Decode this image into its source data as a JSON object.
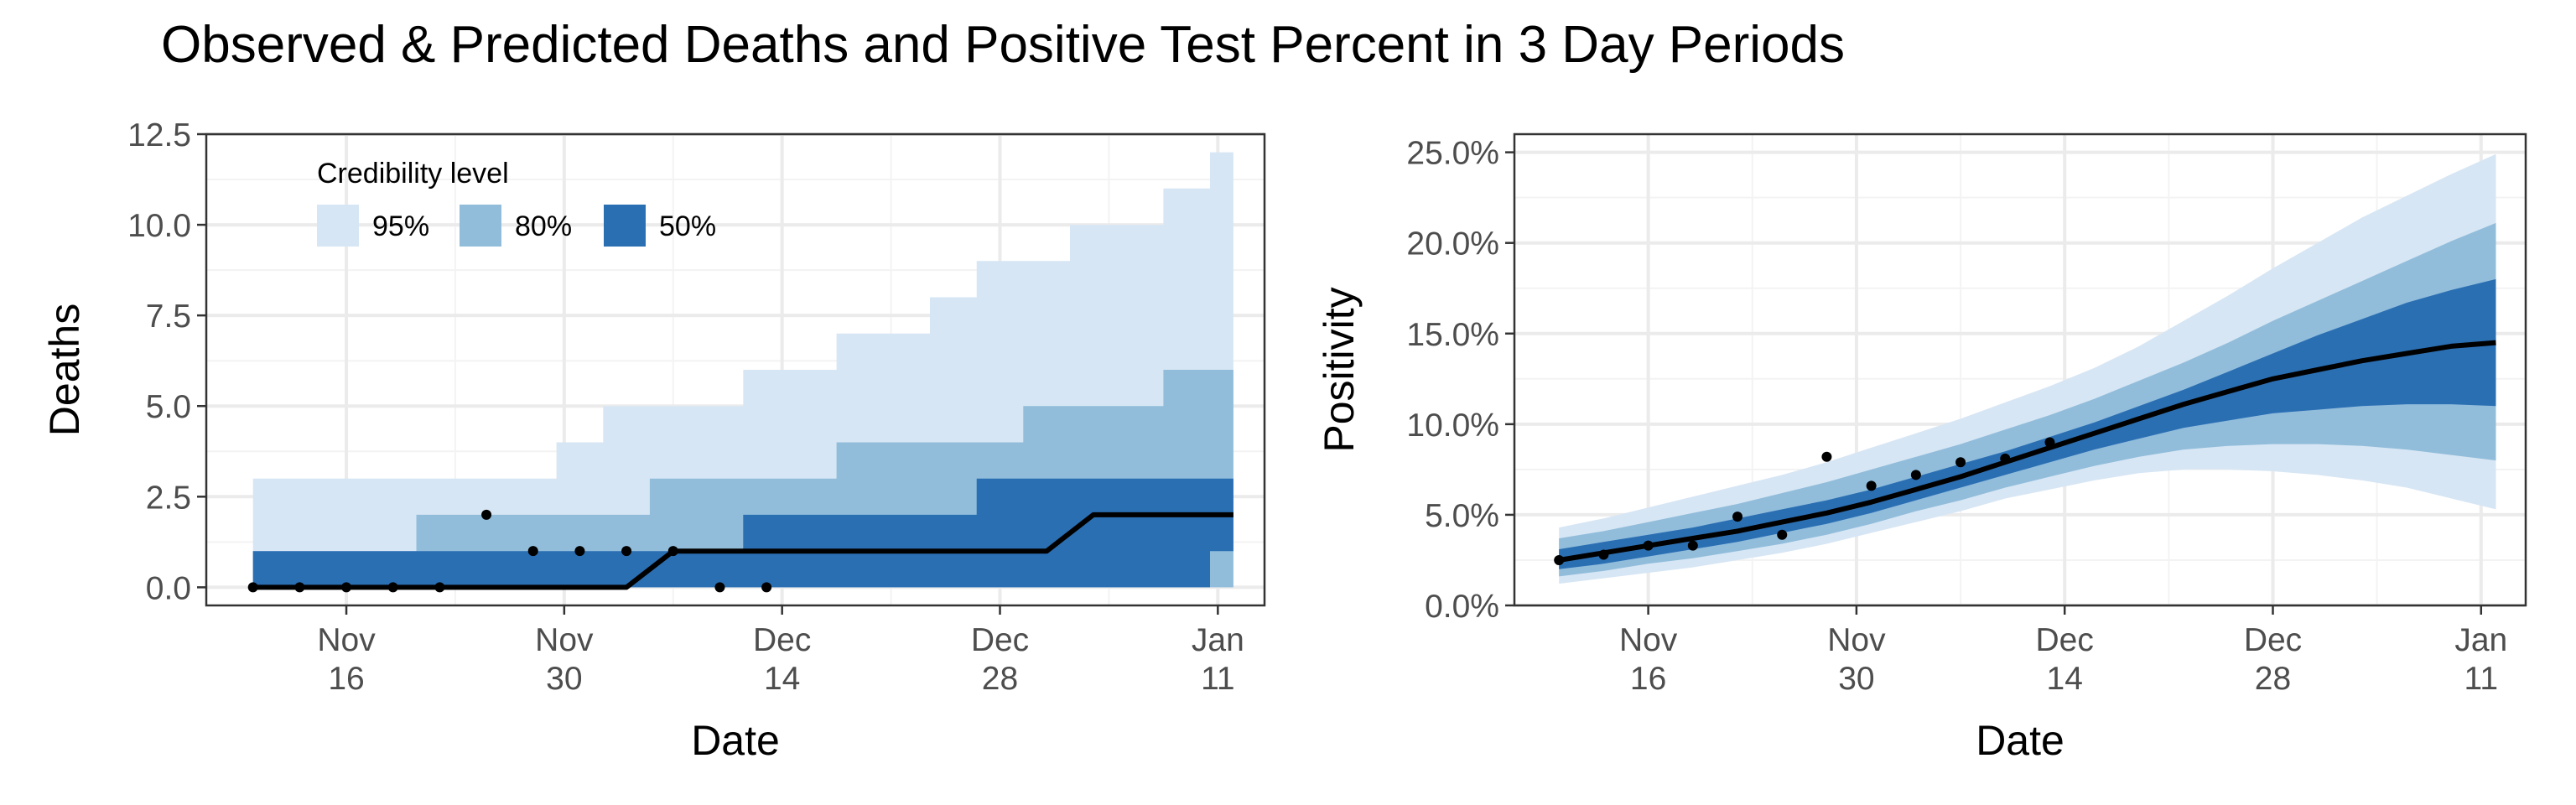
{
  "title": "Observed & Predicted Deaths and Positive Test Percent in 3 Day Periods",
  "colors": {
    "band95": "#d7e6f4",
    "band80": "#91bddb",
    "band50": "#2b6fb3",
    "median": "#000000",
    "observed": "#000000",
    "grid_major": "#ebebeb",
    "grid_minor": "#f3f3f3",
    "panel_border": "#333333"
  },
  "legend": {
    "title": "Credibility level",
    "placement": "top-left",
    "items": [
      {
        "label": "95%",
        "color": "#d7e6f4"
      },
      {
        "label": "80%",
        "color": "#91bddb"
      },
      {
        "label": "50%",
        "color": "#2b6fb3"
      }
    ]
  },
  "chart_data": [
    {
      "type": "area",
      "step": true,
      "xlabel": "Date",
      "ylabel": "Deaths",
      "ylim": [
        -0.5,
        12.5
      ],
      "yticks": [
        0,
        2.5,
        5,
        7.5,
        10,
        12.5
      ],
      "ytick_labels": [
        "0.0",
        "2.5",
        "5.0",
        "7.5",
        "10.0",
        "12.5"
      ],
      "xlim": [
        "2020-11-07",
        "2021-01-14"
      ],
      "xticks": [
        "2020-11-16",
        "2020-11-30",
        "2020-12-14",
        "2020-12-28",
        "2021-01-11"
      ],
      "xtick_labels": [
        [
          "Nov",
          "16"
        ],
        [
          "Nov",
          "30"
        ],
        [
          "Dec",
          "14"
        ],
        [
          "Dec",
          "28"
        ],
        [
          "Jan",
          "11"
        ]
      ],
      "grid": true,
      "bands": {
        "x": [
          "2020-11-10",
          "2020-11-13",
          "2020-11-16",
          "2020-11-19",
          "2020-11-22",
          "2020-11-25",
          "2020-11-28",
          "2020-12-01",
          "2020-12-04",
          "2020-12-07",
          "2020-12-10",
          "2020-12-13",
          "2020-12-16",
          "2020-12-19",
          "2020-12-22",
          "2020-12-25",
          "2020-12-28",
          "2020-12-31",
          "2021-01-03",
          "2021-01-06",
          "2021-01-09",
          "2021-01-12"
        ],
        "lo95": [
          0,
          0,
          0,
          0,
          0,
          0,
          0,
          0,
          0,
          0,
          0,
          0,
          0,
          0,
          0,
          0,
          0,
          0,
          0,
          0,
          0,
          0
        ],
        "hi95": [
          3,
          3,
          3,
          3,
          3,
          3,
          3,
          4,
          5,
          5,
          5,
          6,
          6,
          7,
          7,
          8,
          9,
          9,
          10,
          10,
          11,
          12
        ],
        "lo80": [
          0,
          0,
          0,
          0,
          0,
          0,
          0,
          0,
          0,
          0,
          0,
          0,
          0,
          0,
          0,
          0,
          0,
          0,
          0,
          0,
          0,
          0
        ],
        "hi80": [
          1,
          1,
          1,
          1,
          2,
          2,
          2,
          2,
          2,
          3,
          3,
          3,
          3,
          4,
          4,
          4,
          4,
          5,
          5,
          5,
          6,
          6
        ],
        "lo50": [
          0,
          0,
          0,
          0,
          0,
          0,
          0,
          0,
          0,
          0,
          0,
          0,
          0,
          0,
          0,
          0,
          0,
          0,
          0,
          0,
          0,
          1
        ],
        "hi50": [
          1,
          1,
          1,
          1,
          1,
          1,
          1,
          1,
          1,
          1,
          1,
          2,
          2,
          2,
          2,
          2,
          3,
          3,
          3,
          3,
          3,
          3
        ],
        "median": [
          0,
          0,
          0,
          0,
          0,
          0,
          0,
          0,
          0,
          1,
          1,
          1,
          1,
          1,
          1,
          1,
          1,
          1,
          2,
          2,
          2,
          2
        ]
      },
      "observed": {
        "x": [
          "2020-11-10",
          "2020-11-13",
          "2020-11-16",
          "2020-11-19",
          "2020-11-22",
          "2020-11-25",
          "2020-11-28",
          "2020-12-01",
          "2020-12-04",
          "2020-12-07",
          "2020-12-10",
          "2020-12-13"
        ],
        "y": [
          0,
          0,
          0,
          0,
          0,
          2,
          1,
          1,
          1,
          1,
          0,
          0
        ]
      }
    },
    {
      "type": "area",
      "step": false,
      "xlabel": "Date",
      "ylabel": "Positivity",
      "ylim": [
        0,
        0.26
      ],
      "yticks": [
        0,
        0.05,
        0.1,
        0.15,
        0.2,
        0.25
      ],
      "ytick_labels": [
        "0.0%",
        "5.0%",
        "10.0%",
        "15.0%",
        "20.0%",
        "25.0%"
      ],
      "xlim": [
        "2020-11-07",
        "2021-01-14"
      ],
      "xticks": [
        "2020-11-16",
        "2020-11-30",
        "2020-12-14",
        "2020-12-28",
        "2021-01-11"
      ],
      "xtick_labels": [
        [
          "Nov",
          "16"
        ],
        [
          "Nov",
          "30"
        ],
        [
          "Dec",
          "14"
        ],
        [
          "Dec",
          "28"
        ],
        [
          "Jan",
          "11"
        ]
      ],
      "grid": true,
      "bands": {
        "x": [
          "2020-11-10",
          "2020-11-13",
          "2020-11-16",
          "2020-11-19",
          "2020-11-22",
          "2020-11-25",
          "2020-11-28",
          "2020-12-01",
          "2020-12-04",
          "2020-12-07",
          "2020-12-10",
          "2020-12-13",
          "2020-12-16",
          "2020-12-19",
          "2020-12-22",
          "2020-12-25",
          "2020-12-28",
          "2020-12-31",
          "2021-01-03",
          "2021-01-06",
          "2021-01-09",
          "2021-01-12"
        ],
        "lo95": [
          0.012,
          0.015,
          0.018,
          0.021,
          0.025,
          0.029,
          0.034,
          0.04,
          0.046,
          0.052,
          0.059,
          0.064,
          0.069,
          0.073,
          0.075,
          0.075,
          0.074,
          0.072,
          0.069,
          0.065,
          0.059,
          0.053
        ],
        "hi95": [
          0.043,
          0.048,
          0.054,
          0.06,
          0.066,
          0.072,
          0.079,
          0.087,
          0.095,
          0.103,
          0.112,
          0.121,
          0.131,
          0.143,
          0.157,
          0.171,
          0.186,
          0.2,
          0.214,
          0.226,
          0.238,
          0.249
        ],
        "lo80": [
          0.016,
          0.019,
          0.023,
          0.026,
          0.03,
          0.034,
          0.039,
          0.045,
          0.052,
          0.058,
          0.065,
          0.071,
          0.077,
          0.082,
          0.086,
          0.088,
          0.089,
          0.089,
          0.088,
          0.086,
          0.083,
          0.08
        ],
        "hi80": [
          0.037,
          0.041,
          0.046,
          0.051,
          0.056,
          0.062,
          0.068,
          0.075,
          0.082,
          0.089,
          0.097,
          0.105,
          0.114,
          0.124,
          0.134,
          0.145,
          0.157,
          0.168,
          0.179,
          0.19,
          0.201,
          0.211
        ],
        "lo50": [
          0.02,
          0.023,
          0.027,
          0.031,
          0.035,
          0.04,
          0.045,
          0.051,
          0.058,
          0.065,
          0.072,
          0.079,
          0.086,
          0.092,
          0.098,
          0.102,
          0.106,
          0.108,
          0.11,
          0.111,
          0.111,
          0.11
        ],
        "hi50": [
          0.031,
          0.035,
          0.039,
          0.043,
          0.048,
          0.053,
          0.058,
          0.064,
          0.071,
          0.078,
          0.085,
          0.093,
          0.101,
          0.11,
          0.119,
          0.129,
          0.139,
          0.149,
          0.158,
          0.167,
          0.174,
          0.18
        ],
        "median": [
          0.025,
          0.029,
          0.033,
          0.037,
          0.041,
          0.046,
          0.051,
          0.057,
          0.064,
          0.071,
          0.079,
          0.087,
          0.095,
          0.103,
          0.111,
          0.118,
          0.125,
          0.13,
          0.135,
          0.139,
          0.143,
          0.145
        ]
      },
      "observed": {
        "x": [
          "2020-11-10",
          "2020-11-13",
          "2020-11-16",
          "2020-11-19",
          "2020-11-22",
          "2020-11-25",
          "2020-11-28",
          "2020-12-01",
          "2020-12-04",
          "2020-12-07",
          "2020-12-10",
          "2020-12-13"
        ],
        "y": [
          0.025,
          0.028,
          0.033,
          0.033,
          0.049,
          0.039,
          0.082,
          0.066,
          0.072,
          0.079,
          0.081,
          0.09
        ]
      }
    }
  ]
}
